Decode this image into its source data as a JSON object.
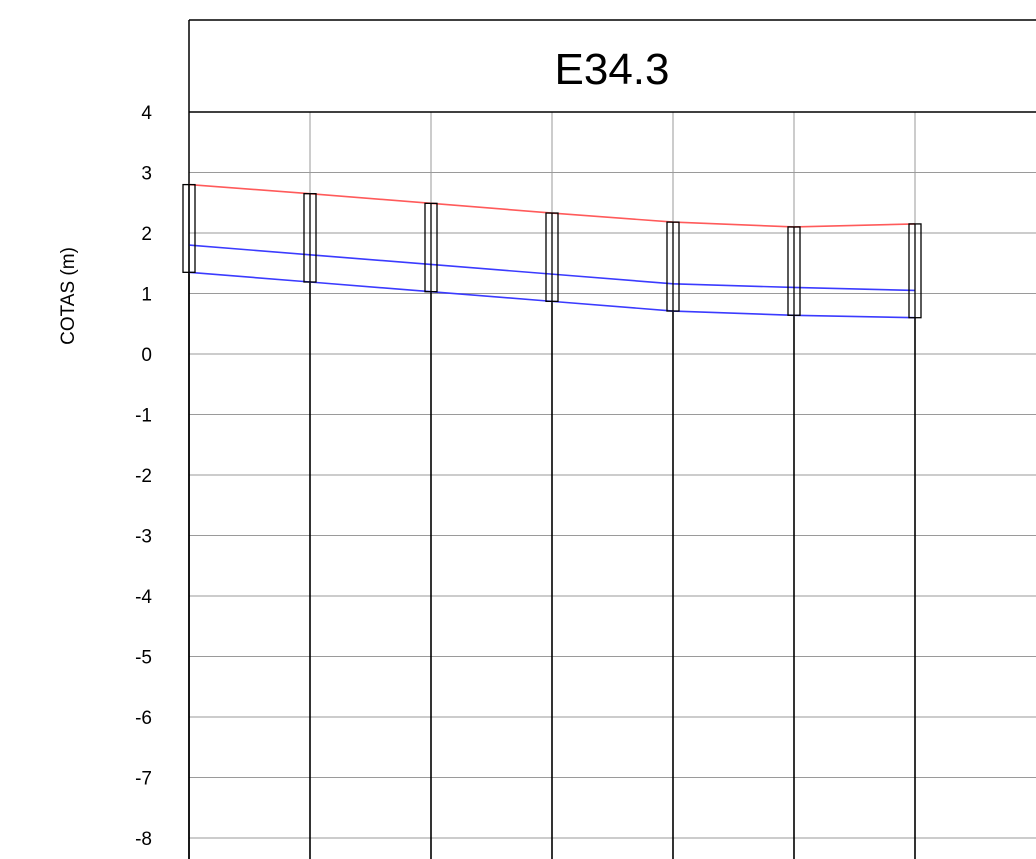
{
  "chart_data": {
    "type": "line",
    "title": "E34.3",
    "ylabel": "COTAS (m)",
    "xlabel": "",
    "ylim": [
      -8,
      4
    ],
    "yticks": [
      4,
      3,
      2,
      1,
      0,
      -1,
      -2,
      -3,
      -4,
      -5,
      -6,
      -7,
      -8
    ],
    "grid": true,
    "stations": [
      1,
      2,
      3,
      4,
      5,
      6,
      7
    ],
    "series": [
      {
        "color": "#ff5a5a",
        "values": [
          2.8,
          2.65,
          2.49,
          2.33,
          2.18,
          2.1,
          2.15
        ]
      },
      {
        "color": "#3b3bff",
        "values": [
          1.8,
          1.64,
          1.48,
          1.32,
          1.16,
          1.1,
          1.05
        ]
      },
      {
        "color": "#3b3bff",
        "values": [
          1.35,
          1.19,
          1.03,
          0.87,
          0.71,
          0.64,
          0.6
        ]
      }
    ],
    "boreholes": [
      {
        "top": 2.8,
        "bottom": 1.35
      },
      {
        "top": 2.65,
        "bottom": 1.19
      },
      {
        "top": 2.49,
        "bottom": 1.03
      },
      {
        "top": 2.33,
        "bottom": 0.87
      },
      {
        "top": 2.18,
        "bottom": 0.71
      },
      {
        "top": 2.1,
        "bottom": 0.64
      },
      {
        "top": 2.15,
        "bottom": 0.6
      }
    ]
  }
}
